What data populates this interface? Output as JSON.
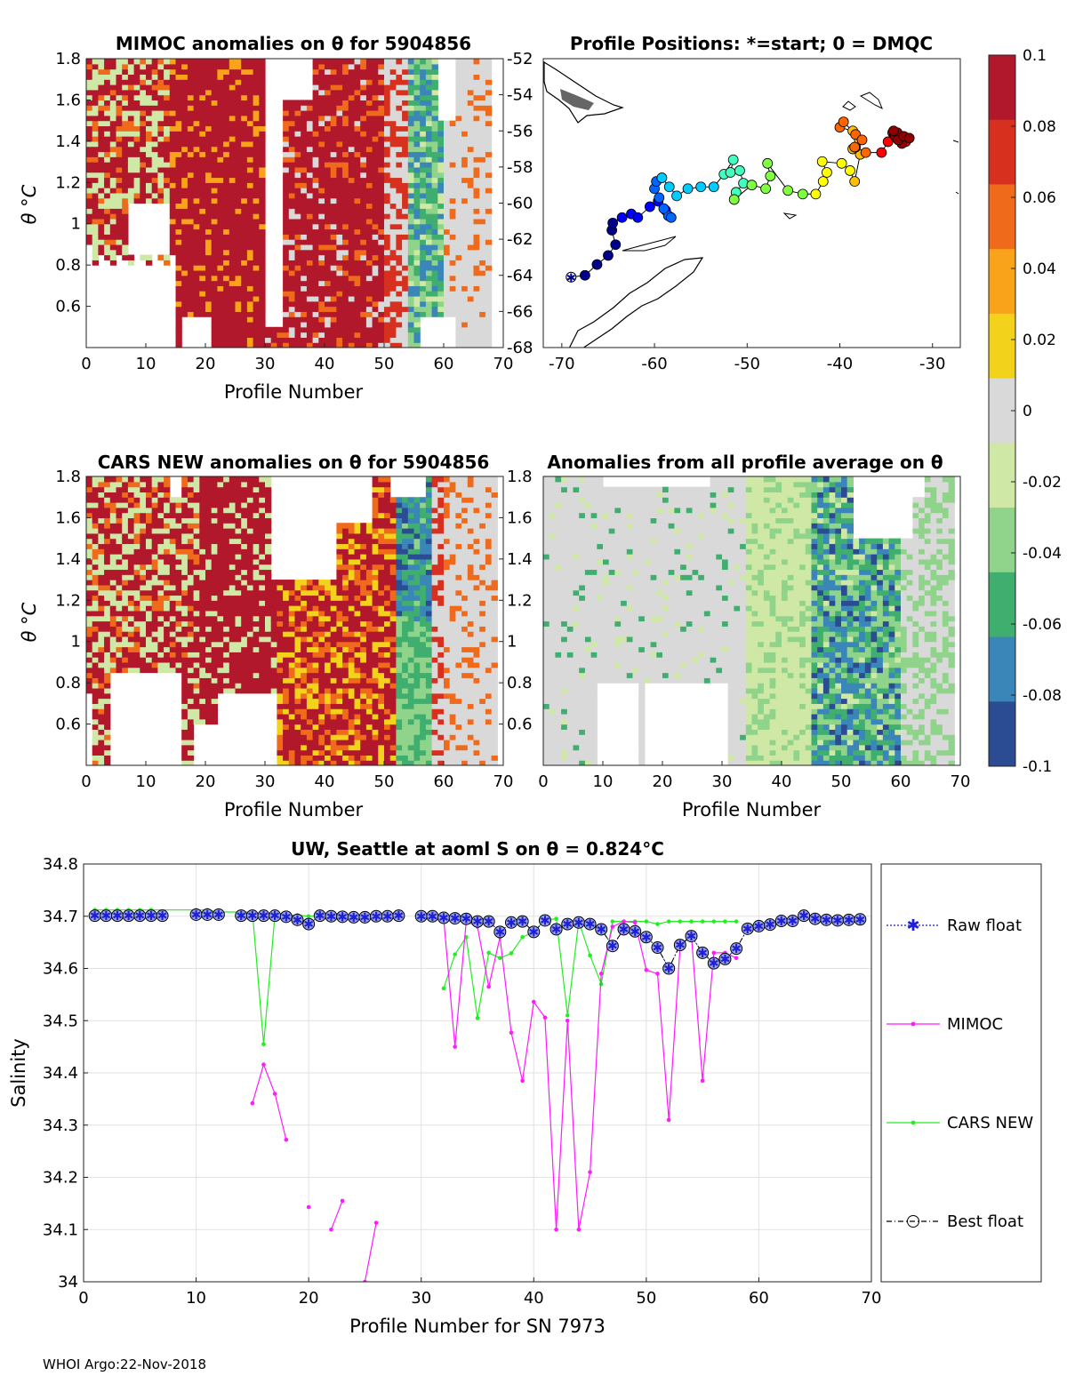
{
  "colorbar": {
    "min": -0.1,
    "max": 0.1,
    "ticks": [
      "0.1",
      "0.08",
      "0.06",
      "0.04",
      "0.02",
      "0",
      "-0.02",
      "-0.04",
      "-0.06",
      "-0.08",
      "-0.1"
    ],
    "colors": [
      "#b2182b",
      "#d7301f",
      "#ef6a1a",
      "#f9a31a",
      "#f2d21a",
      "#d9d9d9",
      "#cfe8a6",
      "#8fd48a",
      "#3fae6f",
      "#3a86b8",
      "#2b4c93"
    ]
  },
  "footer": "WHOI Argo:22-Nov-2018",
  "chart_data": [
    {
      "id": "mimoc",
      "type": "heatmap",
      "title": "MIMOC anomalies on θ  for 5904856",
      "xlabel": "Profile Number",
      "ylabel": "θ °C",
      "xlim": [
        0,
        70
      ],
      "ylim": [
        0.4,
        1.8
      ],
      "xticks": [
        "0",
        "10",
        "20",
        "30",
        "40",
        "50",
        "60",
        "70"
      ],
      "yticks": [
        "0.6",
        "0.8",
        "1",
        "1.2",
        "1.4",
        "1.6",
        "1.8"
      ],
      "description_values": "positive anomalies (~0.1) profiles 1-50, mixed near 55-60, near zero after 60"
    },
    {
      "id": "map",
      "type": "scatter",
      "title": "Profile Positions: *=start; 0 = DMQC",
      "xlim": [
        -72,
        -27
      ],
      "ylim": [
        -68,
        -52
      ],
      "xticks": [
        "-70",
        "-60",
        "-50",
        "-40",
        "-30"
      ],
      "yticks": [
        "-52",
        "-54",
        "-56",
        "-58",
        "-60",
        "-62",
        "-64",
        "-66",
        "-68"
      ],
      "lon": [
        -69,
        -67.5,
        -66.2,
        -65,
        -64.2,
        -64.6,
        -64.5,
        -63.5,
        -62.5,
        -61.8,
        -60.5,
        -59.6,
        -58.8,
        -58.5,
        -58.2,
        -59,
        -59.5,
        -60,
        -59.8,
        -59.2,
        -58.4,
        -57.6,
        -56.4,
        -55,
        -53.6,
        -52.5,
        -51.5,
        -51.8,
        -50.8,
        -50.4,
        -51.2,
        -51.4,
        -49.5,
        -48,
        -47.5,
        -47.8,
        -45.6,
        -44,
        -42.6,
        -41.8,
        -41.4,
        -41.9,
        -39.8,
        -38.9,
        -38.4,
        -37.8,
        -38.6,
        -38.3,
        -37.9,
        -38.6,
        -40,
        -39.6,
        -38.3,
        -37.6,
        -38.4,
        -37.2,
        -35.5,
        -34.8,
        -33.6,
        -34.3,
        -34.1,
        -32.9,
        -33.3,
        -34,
        -33.8,
        -34.2,
        -33.7,
        -33.1,
        -32.5
      ],
      "lat": [
        -64.1,
        -64,
        -63.4,
        -62.9,
        -62.3,
        -61.5,
        -61.1,
        -60.8,
        -60.6,
        -60.8,
        -60.2,
        -59.9,
        -60.4,
        -60.7,
        -60.8,
        -60.3,
        -59.7,
        -59.2,
        -58.8,
        -58.6,
        -59.1,
        -59.6,
        -59.2,
        -59.1,
        -59.1,
        -58.4,
        -57.6,
        -58.3,
        -58.2,
        -58.9,
        -59.4,
        -59.8,
        -59.0,
        -59.2,
        -58.5,
        -57.8,
        -59.3,
        -59.5,
        -59.5,
        -58.8,
        -58.3,
        -57.7,
        -57.8,
        -58.2,
        -58.8,
        -57.3,
        -57.0,
        -56.9,
        -56.5,
        -56.0,
        -55.8,
        -55.5,
        -56.2,
        -56.5,
        -56.9,
        -57.2,
        -57.2,
        -56.6,
        -56.5,
        -56.1,
        -56.2,
        -56.6,
        -56.7,
        -56.3,
        -56.1,
        -56.0,
        -56.5,
        -56.3,
        -56.4
      ]
    },
    {
      "id": "cars",
      "type": "heatmap",
      "title": "CARS NEW anomalies on θ for 5904856",
      "xlabel": "Profile Number",
      "ylabel": "θ °C",
      "xlim": [
        0,
        70
      ],
      "ylim": [
        0.4,
        1.8
      ],
      "xticks": [
        "0",
        "10",
        "20",
        "30",
        "40",
        "50",
        "60",
        "70"
      ],
      "yticks": [
        "0.6",
        "0.8",
        "1",
        "1.2",
        "1.4",
        "1.6",
        "1.8"
      ]
    },
    {
      "id": "avg",
      "type": "heatmap",
      "title": "Anomalies from all profile average on θ",
      "xlabel": "Profile Number",
      "xlim": [
        0,
        70
      ],
      "ylim": [
        0.4,
        1.8
      ],
      "xticks": [
        "0",
        "10",
        "20",
        "30",
        "40",
        "50",
        "60",
        "70"
      ],
      "yticks": [
        "0.6",
        "0.8",
        "1",
        "1.2",
        "1.4",
        "1.6",
        "1.8"
      ]
    },
    {
      "id": "salinity",
      "type": "line",
      "title": "UW, Seattle at aoml S on θ = 0.824°C",
      "xlabel": "Profile Number for SN 7973",
      "ylabel": "Salinity",
      "xlim": [
        0,
        70
      ],
      "ylim": [
        34.0,
        34.8
      ],
      "xticks": [
        "0",
        "10",
        "20",
        "30",
        "40",
        "50",
        "60",
        "70"
      ],
      "yticks": [
        "34",
        "34.1",
        "34.2",
        "34.3",
        "34.4",
        "34.5",
        "34.6",
        "34.7",
        "34.8"
      ],
      "legend": [
        "Raw float",
        "MIMOC",
        "CARS NEW",
        "Best float"
      ],
      "series": [
        {
          "name": "Raw float",
          "color": "#1f1fd6",
          "x": [
            1,
            2,
            3,
            4,
            5,
            6,
            7,
            10,
            11,
            12,
            14,
            15,
            16,
            17,
            18,
            19,
            20,
            21,
            22,
            23,
            24,
            25,
            26,
            27,
            28,
            30,
            31,
            32,
            33,
            34,
            35,
            36,
            37,
            38,
            39,
            40,
            41,
            42,
            43,
            44,
            45,
            46,
            47,
            48,
            49,
            50,
            51,
            52,
            53,
            54,
            55,
            56,
            57,
            58,
            59,
            60,
            61,
            62,
            63,
            64,
            65,
            66,
            67,
            68,
            69
          ],
          "y": [
            34.701,
            34.701,
            34.701,
            34.701,
            34.701,
            34.701,
            34.701,
            34.703,
            34.703,
            34.703,
            34.701,
            34.701,
            34.701,
            34.701,
            34.699,
            34.693,
            34.685,
            34.701,
            34.7,
            34.699,
            34.698,
            34.698,
            34.7,
            34.7,
            34.701,
            34.7,
            34.7,
            34.697,
            34.696,
            34.695,
            34.69,
            34.69,
            34.67,
            34.688,
            34.69,
            34.67,
            34.692,
            34.675,
            34.685,
            34.688,
            34.685,
            34.675,
            34.643,
            34.675,
            34.671,
            34.66,
            34.64,
            34.6,
            34.645,
            34.662,
            34.63,
            34.61,
            34.618,
            34.638,
            34.676,
            34.681,
            34.684,
            34.691,
            34.691,
            34.701,
            34.695,
            34.693,
            34.692,
            34.693,
            34.694
          ]
        },
        {
          "name": "MIMOC",
          "color": "#ff1aff",
          "segments": [
            {
              "x": [
                15,
                16,
                17,
                18
              ],
              "y": [
                34.342,
                34.416,
                34.36,
                34.272
              ]
            },
            {
              "x": [
                20
              ],
              "y": [
                34.143
              ]
            },
            {
              "x": [
                22,
                23
              ],
              "y": [
                34.1,
                34.155
              ]
            },
            {
              "x": [
                25,
                26
              ],
              "y": [
                34.0,
                34.113
              ]
            },
            {
              "x": [
                32,
                33,
                34,
                35,
                36,
                37,
                38,
                39,
                40,
                41,
                42,
                43,
                44,
                45,
                46,
                47,
                48,
                49,
                50,
                51,
                52,
                53,
                54,
                55,
                56,
                57,
                58
              ],
              "y": [
                34.695,
                34.45,
                34.69,
                34.68,
                34.565,
                34.66,
                34.477,
                34.385,
                34.536,
                34.506,
                34.1,
                34.5,
                34.1,
                34.21,
                34.59,
                34.68,
                34.69,
                34.688,
                34.597,
                34.59,
                34.31,
                34.64,
                34.665,
                34.385,
                34.63,
                34.63,
                34.62
              ]
            }
          ]
        },
        {
          "name": "CARS NEW",
          "color": "#22ee22",
          "segments": [
            {
              "x": [
                1,
                2,
                3,
                4,
                5,
                6,
                10,
                11,
                12,
                14,
                15,
                16,
                17,
                18,
                19,
                20,
                21,
                22,
                23,
                24,
                25,
                26,
                27,
                28
              ],
              "y": [
                34.712,
                34.712,
                34.712,
                34.712,
                34.712,
                34.712,
                34.712,
                34.712,
                34.708,
                34.708,
                34.708,
                34.455,
                34.702,
                34.702,
                34.702,
                34.7,
                34.7,
                34.7,
                34.7,
                34.7,
                34.7,
                34.7,
                34.7,
                34.7
              ]
            },
            {
              "x": [
                32,
                33,
                34,
                35,
                36,
                37,
                38,
                39,
                40,
                41,
                42,
                43,
                44,
                45,
                46,
                47,
                48,
                49,
                50,
                51,
                52,
                53,
                54,
                55,
                56,
                57,
                58
              ],
              "y": [
                34.562,
                34.627,
                34.66,
                34.505,
                34.63,
                34.62,
                34.629,
                34.66,
                34.67,
                34.693,
                34.695,
                34.51,
                34.69,
                34.625,
                34.57,
                34.69,
                34.69,
                34.69,
                34.69,
                34.685,
                34.69,
                34.69,
                34.69,
                34.69,
                34.69,
                34.69,
                34.69
              ]
            }
          ]
        },
        {
          "name": "Best float",
          "color": "#000000",
          "note": "same values as Raw float"
        }
      ]
    }
  ]
}
